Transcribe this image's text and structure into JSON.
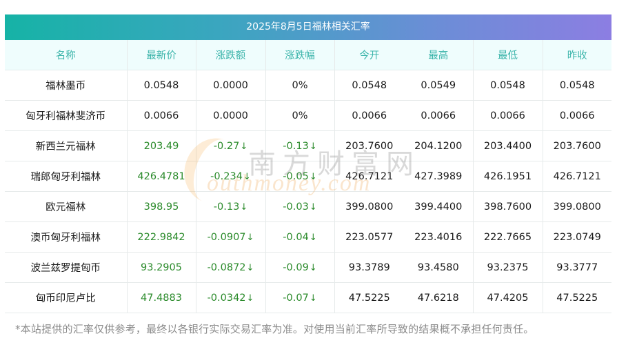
{
  "title": "2025年8月5日福林相关汇率",
  "columns": [
    "名称",
    "最新价",
    "涨跌额",
    "涨跌幅",
    "今开",
    "最高",
    "最低",
    "昨收"
  ],
  "rows": [
    {
      "name": "福林墨币",
      "latest": "0.0548",
      "change": "0.0000",
      "change_pct": "0%",
      "open": "0.0548",
      "high": "0.0549",
      "low": "0.0548",
      "prev_close": "0.0548",
      "trend": "flat"
    },
    {
      "name": "匈牙利福林斐济币",
      "latest": "0.0066",
      "change": "0.0000",
      "change_pct": "0%",
      "open": "0.0066",
      "high": "0.0066",
      "low": "0.0066",
      "prev_close": "0.0066",
      "trend": "flat"
    },
    {
      "name": "新西兰元福林",
      "latest": "203.49",
      "change": "-0.27",
      "change_pct": "-0.13",
      "open": "203.7600",
      "high": "204.1200",
      "low": "203.4400",
      "prev_close": "203.7600",
      "trend": "down"
    },
    {
      "name": "瑞郎匈牙利福林",
      "latest": "426.4781",
      "change": "-0.234",
      "change_pct": "-0.05",
      "open": "426.7121",
      "high": "427.3989",
      "low": "426.1951",
      "prev_close": "426.7121",
      "trend": "down"
    },
    {
      "name": "欧元福林",
      "latest": "398.95",
      "change": "-0.13",
      "change_pct": "-0.03",
      "open": "399.0800",
      "high": "399.4400",
      "low": "398.7600",
      "prev_close": "399.0800",
      "trend": "down"
    },
    {
      "name": "澳币匈牙利福林",
      "latest": "222.9842",
      "change": "-0.0907",
      "change_pct": "-0.04",
      "open": "223.0577",
      "high": "223.4016",
      "low": "222.7665",
      "prev_close": "223.0749",
      "trend": "down"
    },
    {
      "name": "波兰兹罗提匈币",
      "latest": "93.2905",
      "change": "-0.0872",
      "change_pct": "-0.09",
      "open": "93.3789",
      "high": "93.4580",
      "low": "93.2375",
      "prev_close": "93.3777",
      "trend": "down"
    },
    {
      "name": "匈币印尼卢比",
      "latest": "47.4883",
      "change": "-0.0342",
      "change_pct": "-0.07",
      "open": "47.5225",
      "high": "47.6218",
      "low": "47.4205",
      "prev_close": "47.5225",
      "trend": "down"
    }
  ],
  "down_arrow": "↓",
  "footnote": "*本站提供的汇率仅供参考，最终以各银行实际交易汇率为准。对使用当前汇率所导致的结果概不承担任何责任。",
  "watermark": {
    "cn": "南方财富网",
    "en": "outhmoney.com"
  },
  "colors": {
    "title_start": "#16b3a6",
    "title_end": "#8c7ee2",
    "header_text": "#3db5ab",
    "down": "#2a8a2a"
  }
}
